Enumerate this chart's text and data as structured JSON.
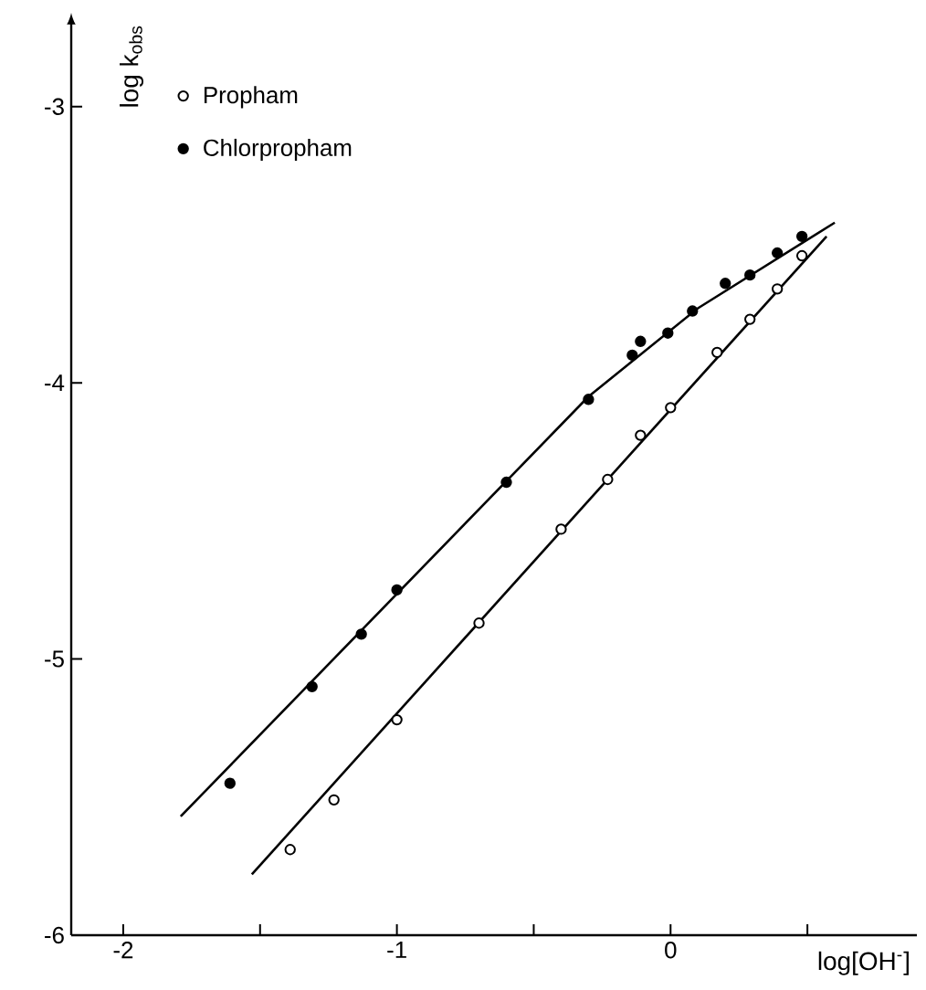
{
  "chart_data": {
    "type": "scatter",
    "xlabel": "log[OH$^{-}$]",
    "ylabel": "log k$_{obs}$",
    "xlim": [
      -2.19,
      0.9
    ],
    "ylim": [
      -6,
      -2.7
    ],
    "xticks": [
      -2,
      {
        "value": -1.5,
        "label": null
      },
      -1,
      {
        "value": -0.5,
        "label": null
      },
      0,
      {
        "value": 0.5,
        "label": null
      }
    ],
    "yticks": [
      -6,
      -5,
      -4,
      -3
    ],
    "legend": "top left",
    "series": [
      {
        "name": "Propham",
        "marker": "circle",
        "color": "#ffffff",
        "x": [
          0.48,
          0.39,
          0.29,
          0.17,
          0.0,
          -0.11,
          -0.23,
          -0.4,
          -0.7,
          -1.0,
          -1.23,
          -1.39
        ],
        "values": [
          -3.54,
          -3.66,
          -3.77,
          -3.89,
          -4.09,
          -4.19,
          -4.35,
          -4.53,
          -4.87,
          -5.22,
          -5.51,
          -5.69
        ]
      },
      {
        "name": "Chlorpropham",
        "marker": "circle",
        "color": "#000000",
        "x": [
          0.48,
          0.39,
          0.29,
          0.2,
          0.08,
          -0.01,
          -0.11,
          -0.14,
          -0.3,
          -0.6,
          -1.0,
          -1.13,
          -1.31,
          -1.61
        ],
        "values": [
          -3.47,
          -3.53,
          -3.61,
          -3.64,
          -3.74,
          -3.82,
          -3.85,
          -3.9,
          -4.06,
          -4.36,
          -4.75,
          -4.91,
          -5.1,
          -5.45
        ]
      },
      {
        "type": "line",
        "marker": "none",
        "color": "#000000",
        "x": [
          -1.53,
          0.57
        ],
        "values": [
          -5.78,
          -3.47
        ]
      },
      {
        "type": "line",
        "marker": "none",
        "color": "#000000",
        "x": [
          -1.79,
          -0.3,
          0.1,
          0.6
        ],
        "values": [
          -5.57,
          -4.05,
          -3.73,
          -3.42
        ]
      }
    ]
  }
}
